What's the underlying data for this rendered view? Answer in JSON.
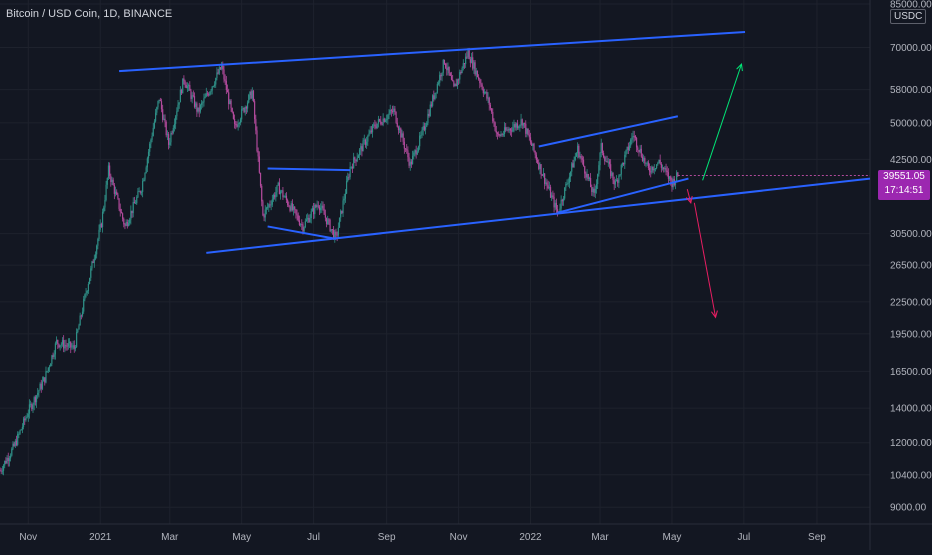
{
  "header": {
    "symbol_title": "Bitcoin / USD Coin, 1D, BINANCE"
  },
  "price_axis": {
    "currency": "USDC",
    "last_price": "39551.05",
    "countdown": "17:14:51",
    "last_price_color": "#9c27b0"
  },
  "colors": {
    "background": "#131722",
    "grid": "#1e222d",
    "candle_up": "#26a69a",
    "candle_down": "#ef5350",
    "candle_primary": "#2f8f87",
    "candle_secondary": "#b14a9b",
    "trendline": "#2962ff",
    "arrow_up": "#00e676",
    "arrow_down": "#e91e63"
  },
  "chart_data": {
    "type": "candlestick",
    "title": "Bitcoin / USD Coin, 1D, BINANCE",
    "scale": "log",
    "y_range": [
      8500,
      85000
    ],
    "grid": true,
    "y_ticks": [
      {
        "value": 85000,
        "label": "85000.00"
      },
      {
        "value": 70000,
        "label": "70000.00"
      },
      {
        "value": 58000,
        "label": "58000.00"
      },
      {
        "value": 50000,
        "label": "50000.00"
      },
      {
        "value": 42500,
        "label": "42500.00"
      },
      {
        "value": 30500,
        "label": "30500.00"
      },
      {
        "value": 26500,
        "label": "26500.00"
      },
      {
        "value": 22500,
        "label": "22500.00"
      },
      {
        "value": 19500,
        "label": "19500.00"
      },
      {
        "value": 16500,
        "label": "16500.00"
      },
      {
        "value": 14000,
        "label": "14000.00"
      },
      {
        "value": 12000,
        "label": "12000.00"
      },
      {
        "value": 10400,
        "label": "10400.00"
      },
      {
        "value": 9000,
        "label": "9000.00"
      }
    ],
    "x_ticks": [
      {
        "label": "Nov",
        "date": "2020-11-01"
      },
      {
        "label": "2021",
        "date": "2021-01-01"
      },
      {
        "label": "Mar",
        "date": "2021-03-01"
      },
      {
        "label": "May",
        "date": "2021-05-01"
      },
      {
        "label": "Jul",
        "date": "2021-07-01"
      },
      {
        "label": "Sep",
        "date": "2021-09-01"
      },
      {
        "label": "Nov",
        "date": "2021-11-01"
      },
      {
        "label": "2022",
        "date": "2022-01-01"
      },
      {
        "label": "Mar",
        "date": "2022-03-01"
      },
      {
        "label": "May",
        "date": "2022-05-01"
      },
      {
        "label": "Jul",
        "date": "2022-07-01"
      },
      {
        "label": "Sep",
        "date": "2022-09-01"
      }
    ],
    "x_range": [
      "2020-10-08",
      "2022-10-16"
    ],
    "series": [
      {
        "price_path": [
          [
            "2020-10-08",
            10600
          ],
          [
            "2020-10-20",
            11800
          ],
          [
            "2020-11-01",
            13800
          ],
          [
            "2020-11-15",
            16000
          ],
          [
            "2020-11-25",
            18800
          ],
          [
            "2020-12-10",
            18300
          ],
          [
            "2020-12-20",
            23500
          ],
          [
            "2021-01-02",
            32000
          ],
          [
            "2021-01-08",
            40500
          ],
          [
            "2021-01-22",
            31500
          ],
          [
            "2021-02-05",
            37500
          ],
          [
            "2021-02-20",
            56000
          ],
          [
            "2021-02-28",
            45500
          ],
          [
            "2021-03-13",
            61000
          ],
          [
            "2021-03-25",
            52500
          ],
          [
            "2021-04-14",
            64200
          ],
          [
            "2021-04-25",
            49000
          ],
          [
            "2021-05-10",
            57500
          ],
          [
            "2021-05-19",
            33000
          ],
          [
            "2021-06-01",
            37500
          ],
          [
            "2021-06-22",
            31500
          ],
          [
            "2021-07-05",
            35000
          ],
          [
            "2021-07-20",
            29800
          ],
          [
            "2021-08-01",
            41000
          ],
          [
            "2021-08-22",
            49500
          ],
          [
            "2021-09-07",
            52800
          ],
          [
            "2021-09-21",
            41500
          ],
          [
            "2021-10-01",
            47500
          ],
          [
            "2021-10-20",
            66000
          ],
          [
            "2021-10-28",
            58000
          ],
          [
            "2021-11-09",
            68500
          ],
          [
            "2021-11-27",
            54500
          ],
          [
            "2021-12-04",
            47000
          ],
          [
            "2021-12-25",
            50500
          ],
          [
            "2022-01-10",
            40500
          ],
          [
            "2022-01-24",
            33500
          ],
          [
            "2022-02-10",
            44500
          ],
          [
            "2022-02-24",
            36000
          ],
          [
            "2022-03-02",
            44800
          ],
          [
            "2022-03-14",
            38000
          ],
          [
            "2022-03-29",
            47500
          ],
          [
            "2022-04-11",
            40500
          ],
          [
            "2022-04-20",
            42000
          ],
          [
            "2022-05-01",
            38300
          ],
          [
            "2022-05-06",
            39551.05
          ]
        ]
      }
    ],
    "drawings": [
      {
        "kind": "trendline",
        "from": [
          "2021-01-17",
          63000
        ],
        "to": [
          "2022-07-02",
          75000
        ]
      },
      {
        "kind": "trendline",
        "from": [
          "2021-04-01",
          28000
        ],
        "to": [
          "2022-10-16",
          39000
        ]
      },
      {
        "kind": "trendline",
        "from": [
          "2021-05-23",
          31500
        ],
        "to": [
          "2021-07-20",
          29800
        ]
      },
      {
        "kind": "trendline",
        "from": [
          "2021-05-23",
          40800
        ],
        "to": [
          "2021-08-01",
          40500
        ]
      },
      {
        "kind": "trendline",
        "from": [
          "2022-01-08",
          45000
        ],
        "to": [
          "2022-05-06",
          51500
        ]
      },
      {
        "kind": "trendline",
        "from": [
          "2022-01-24",
          33500
        ],
        "to": [
          "2022-05-15",
          39000
        ]
      },
      {
        "kind": "arrow",
        "from": [
          "2022-05-27",
          38700
        ],
        "to": [
          "2022-06-29",
          65000
        ],
        "color": "arrow_up"
      },
      {
        "kind": "arrow",
        "from": [
          "2022-05-20",
          35000
        ],
        "to": [
          "2022-06-07",
          21000
        ],
        "color": "arrow_down"
      },
      {
        "kind": "arrow",
        "from": [
          "2022-05-14",
          37200
        ],
        "to": [
          "2022-05-17",
          35000
        ],
        "color": "arrow_down"
      }
    ]
  }
}
